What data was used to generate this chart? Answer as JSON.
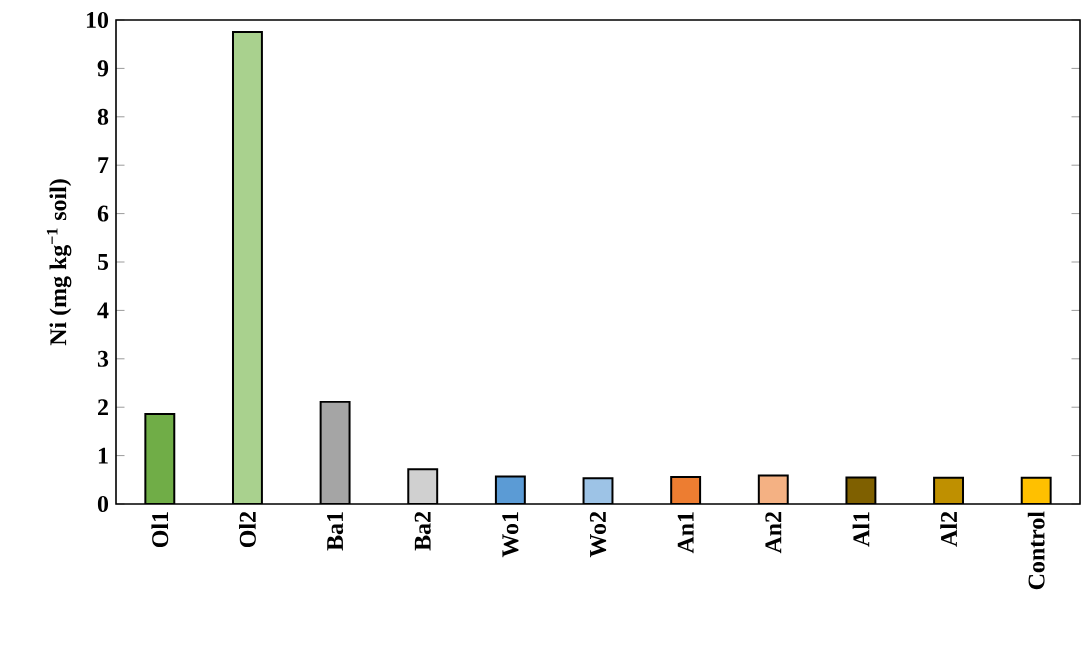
{
  "chart_data": {
    "type": "bar",
    "ylabel": "Ni (mg kg$^{−1}$ soil)",
    "categories": [
      "Ol1",
      "Ol2",
      "Ba1",
      "Ba2",
      "Wo1",
      "Wo2",
      "An1",
      "An2",
      "Al1",
      "Al2",
      "Control"
    ],
    "values": [
      1.86,
      9.75,
      2.11,
      0.72,
      0.57,
      0.53,
      0.56,
      0.59,
      0.55,
      0.54,
      0.54
    ],
    "colors": [
      "#70ad47",
      "#a9d18e",
      "#a5a5a5",
      "#d0d0d0",
      "#5b9bd5",
      "#9dc3e6",
      "#ed7d31",
      "#f4b183",
      "#7f6000",
      "#bf9000",
      "#ffc000"
    ],
    "ylim": [
      0,
      10
    ],
    "yticks": [
      0,
      1,
      2,
      3,
      4,
      5,
      6,
      7,
      8,
      9,
      10
    ]
  }
}
